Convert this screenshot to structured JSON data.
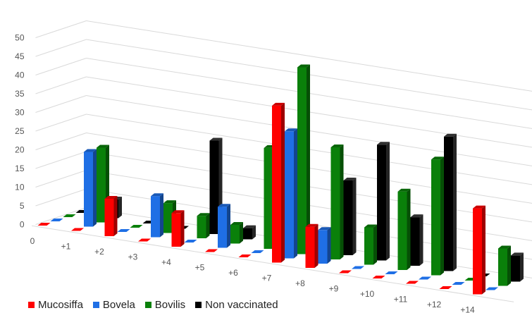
{
  "chart_data": {
    "type": "bar",
    "style": "3d-clustered-column",
    "categories": [
      "0",
      "+1",
      "+2",
      "+3",
      "+4",
      "+5",
      "+6",
      "+7",
      "+8",
      "+9",
      "+10",
      "+11",
      "+12",
      "+14"
    ],
    "series": [
      {
        "name": "Mucosiffa",
        "color": "#ff0000",
        "values": [
          0,
          0,
          10,
          0,
          9,
          0,
          0,
          42,
          11,
          0,
          0,
          0,
          0,
          23
        ]
      },
      {
        "name": "Bovela",
        "color": "#1f6fe5",
        "values": [
          0,
          20,
          0,
          11,
          0,
          11,
          0,
          34,
          9,
          0,
          0,
          0,
          0,
          0
        ]
      },
      {
        "name": "Bovilis",
        "color": "#0a800a",
        "values": [
          0,
          20,
          0,
          8,
          6,
          5,
          27,
          50,
          30,
          10,
          21,
          31,
          0,
          10
        ]
      },
      {
        "name": "Non vaccinated",
        "color": "#000000",
        "values": [
          0,
          5,
          0,
          0,
          25,
          3,
          12,
          0,
          20,
          31,
          13,
          36,
          0,
          7
        ]
      }
    ],
    "yticks": [
      0,
      5,
      10,
      15,
      20,
      25,
      30,
      35,
      40,
      45,
      50
    ],
    "ylim": [
      0,
      50
    ],
    "title": "",
    "xlabel": "",
    "ylabel": "",
    "grid": true,
    "legend_position": "bottom"
  }
}
